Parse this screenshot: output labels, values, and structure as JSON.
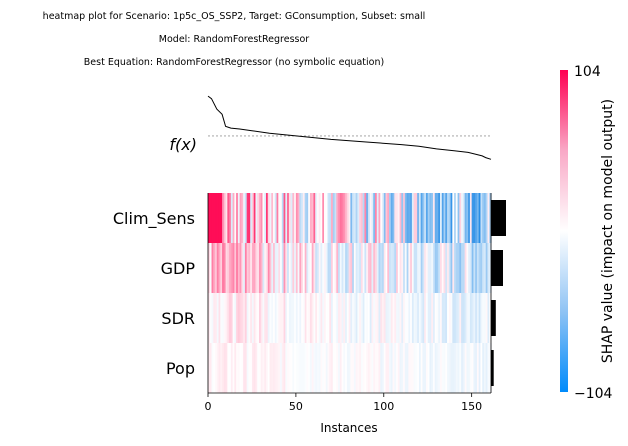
{
  "chart_data": {
    "type": "heatmap",
    "title_lines": [
      "heatmap plot for Scenario: 1p5c_OS_SSP2, Target: GConsumption, Subset: small",
      "Model: RandomForestRegressor",
      "Best Equation: RandomForestRegressor (no symbolic equation)"
    ],
    "fx_label": "f(x)",
    "xlabel": "Instances",
    "xlim": [
      0,
      161
    ],
    "xticks": [
      0,
      50,
      100,
      150
    ],
    "features": [
      "Clim_Sens",
      "GDP",
      "SDR",
      "Pop"
    ],
    "feature_importance": [
      0.75,
      0.45,
      0.18,
      0.1
    ],
    "colorbar": {
      "label": "SHAP value (impact on model output)",
      "max_label": "104",
      "min_label": "−104",
      "vmin": -104,
      "vmax": 104
    },
    "fx_curve": {
      "x": [
        0,
        2,
        5,
        8,
        10,
        13,
        18,
        25,
        35,
        50,
        70,
        90,
        110,
        120,
        130,
        140,
        148,
        152,
        156,
        158,
        161
      ],
      "y": [
        93,
        90,
        78,
        72,
        58,
        56,
        55,
        53,
        50,
        47,
        43,
        40,
        37,
        35,
        32,
        30,
        28,
        26,
        24,
        22,
        20
      ]
    },
    "fx_ylim": [
      10,
      100
    ],
    "fx_reference": 47,
    "colors": {
      "positive": "#ff0d57",
      "negative": "#1e88e5",
      "neutral": "#ffffff",
      "importance_bar": "#000000",
      "fx_line": "#000000",
      "fx_reference": "#999999"
    }
  }
}
